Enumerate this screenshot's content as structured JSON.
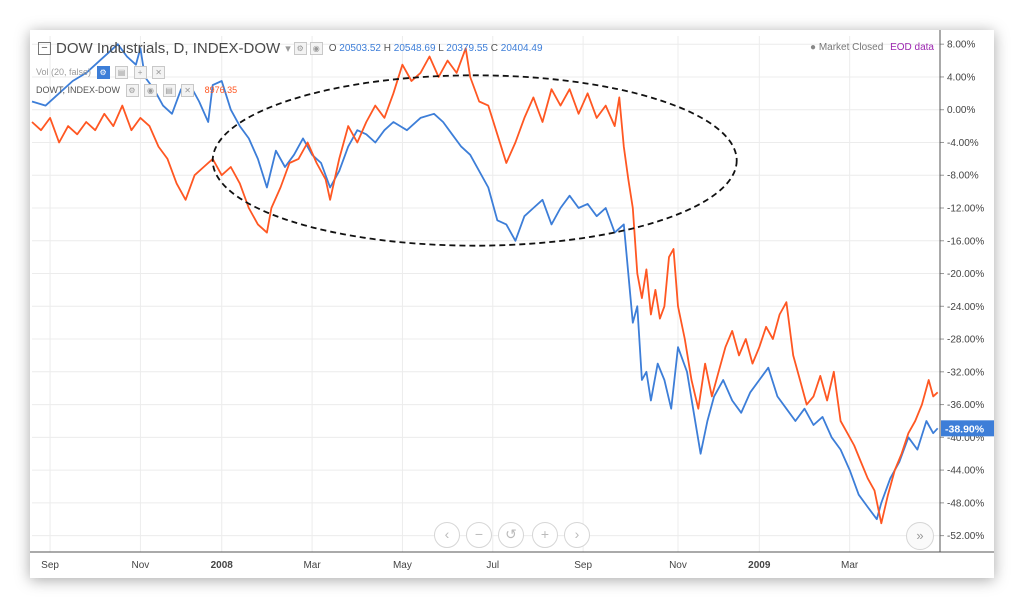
{
  "header": {
    "collapse_icon": "collapse-square-icon",
    "title": "DOW Industrials, D, INDEX-DOW",
    "ohlc": {
      "o_label": "O",
      "o": "20503.52",
      "h_label": "H",
      "h": "20548.69",
      "l_label": "L",
      "l": "20379.55",
      "c_label": "C",
      "c": "20404.49"
    },
    "vol_label": "Vol (20, false)",
    "compare_label": "DOWT, INDEX-DOW",
    "compare_value": "8976.35",
    "market_status": "Market Closed",
    "data_source": "EOD data",
    "last_value_label": "-38.90%"
  },
  "colors": {
    "dow": "#3d7ed8",
    "dowt": "#ff5722",
    "ellipse": "#111111",
    "grid": "#ececec",
    "last_value_bg": "#3d7ed8"
  },
  "nav": {
    "back": "‹",
    "zoom_out": "−",
    "reset": "↺",
    "zoom_in": "+",
    "forward": "›",
    "scroll_right": "»"
  },
  "chart_data": {
    "type": "line",
    "y_unit": "percent",
    "ylim": [
      -54,
      9
    ],
    "y_ticks": [
      "8.00%",
      "4.00%",
      "0.00%",
      "-4.00%",
      "-8.00%",
      "-12.00%",
      "-16.00%",
      "-20.00%",
      "-24.00%",
      "-28.00%",
      "-32.00%",
      "-36.00%",
      "-40.00%",
      "-44.00%",
      "-48.00%",
      "-52.00%"
    ],
    "x_ticks": [
      {
        "label": "Sep",
        "x": 0.4
      },
      {
        "label": "Nov",
        "x": 2.4
      },
      {
        "label": "2008",
        "x": 4.2
      },
      {
        "label": "Mar",
        "x": 6.2
      },
      {
        "label": "May",
        "x": 8.2
      },
      {
        "label": "Jul",
        "x": 10.2
      },
      {
        "label": "Sep",
        "x": 12.2
      },
      {
        "label": "Nov",
        "x": 14.3
      },
      {
        "label": "2009",
        "x": 16.1
      },
      {
        "label": "Mar",
        "x": 18.1
      }
    ],
    "xlim": [
      0,
      20.1
    ],
    "series": [
      {
        "name": "DOW Industrials",
        "color": "#3d7ed8",
        "points": [
          [
            0.0,
            1.0
          ],
          [
            0.3,
            0.5
          ],
          [
            0.6,
            2.0
          ],
          [
            0.9,
            3.5
          ],
          [
            1.2,
            4.5
          ],
          [
            1.5,
            6.0
          ],
          [
            1.7,
            7.0
          ],
          [
            1.9,
            8.0
          ],
          [
            2.1,
            6.5
          ],
          [
            2.3,
            5.5
          ],
          [
            2.4,
            7.5
          ],
          [
            2.5,
            4.0
          ],
          [
            2.7,
            2.5
          ],
          [
            2.9,
            0.5
          ],
          [
            3.1,
            -0.5
          ],
          [
            3.3,
            2.5
          ],
          [
            3.5,
            3.0
          ],
          [
            3.7,
            1.0
          ],
          [
            3.9,
            -1.5
          ],
          [
            4.0,
            3.0
          ],
          [
            4.2,
            3.5
          ],
          [
            4.4,
            0.0
          ],
          [
            4.6,
            -2.0
          ],
          [
            4.8,
            -3.5
          ],
          [
            5.0,
            -6.0
          ],
          [
            5.2,
            -9.5
          ],
          [
            5.4,
            -5.0
          ],
          [
            5.6,
            -7.0
          ],
          [
            5.8,
            -5.5
          ],
          [
            6.0,
            -3.5
          ],
          [
            6.2,
            -5.5
          ],
          [
            6.4,
            -6.5
          ],
          [
            6.6,
            -9.5
          ],
          [
            6.8,
            -7.5
          ],
          [
            7.0,
            -4.5
          ],
          [
            7.2,
            -2.5
          ],
          [
            7.4,
            -3.0
          ],
          [
            7.6,
            -4.0
          ],
          [
            7.8,
            -2.5
          ],
          [
            8.0,
            -1.5
          ],
          [
            8.3,
            -2.5
          ],
          [
            8.6,
            -1.0
          ],
          [
            8.9,
            -0.5
          ],
          [
            9.1,
            -1.5
          ],
          [
            9.3,
            -3.0
          ],
          [
            9.5,
            -4.5
          ],
          [
            9.7,
            -5.5
          ],
          [
            9.9,
            -7.5
          ],
          [
            10.1,
            -9.5
          ],
          [
            10.3,
            -13.5
          ],
          [
            10.5,
            -14.0
          ],
          [
            10.7,
            -16.0
          ],
          [
            10.9,
            -13.0
          ],
          [
            11.1,
            -12.0
          ],
          [
            11.3,
            -11.0
          ],
          [
            11.5,
            -14.0
          ],
          [
            11.7,
            -12.0
          ],
          [
            11.9,
            -10.5
          ],
          [
            12.1,
            -12.0
          ],
          [
            12.3,
            -11.5
          ],
          [
            12.5,
            -13.0
          ],
          [
            12.7,
            -12.0
          ],
          [
            12.9,
            -15.0
          ],
          [
            13.1,
            -14.0
          ],
          [
            13.2,
            -20.0
          ],
          [
            13.3,
            -26.0
          ],
          [
            13.4,
            -24.0
          ],
          [
            13.5,
            -33.0
          ],
          [
            13.6,
            -32.0
          ],
          [
            13.7,
            -35.5
          ],
          [
            13.85,
            -31.0
          ],
          [
            14.0,
            -33.0
          ],
          [
            14.15,
            -36.5
          ],
          [
            14.3,
            -29.0
          ],
          [
            14.5,
            -32.0
          ],
          [
            14.65,
            -37.0
          ],
          [
            14.8,
            -42.0
          ],
          [
            14.95,
            -38.0
          ],
          [
            15.1,
            -35.0
          ],
          [
            15.3,
            -33.0
          ],
          [
            15.5,
            -35.5
          ],
          [
            15.7,
            -37.0
          ],
          [
            15.9,
            -34.5
          ],
          [
            16.1,
            -33.0
          ],
          [
            16.3,
            -31.5
          ],
          [
            16.5,
            -35.0
          ],
          [
            16.7,
            -36.5
          ],
          [
            16.9,
            -38.0
          ],
          [
            17.1,
            -36.5
          ],
          [
            17.3,
            -38.5
          ],
          [
            17.5,
            -37.5
          ],
          [
            17.7,
            -40.0
          ],
          [
            17.9,
            -41.5
          ],
          [
            18.1,
            -44.0
          ],
          [
            18.3,
            -47.0
          ],
          [
            18.5,
            -48.5
          ],
          [
            18.7,
            -50.0
          ],
          [
            18.8,
            -48.0
          ],
          [
            19.0,
            -45.0
          ],
          [
            19.2,
            -43.0
          ],
          [
            19.4,
            -40.0
          ],
          [
            19.6,
            -41.5
          ],
          [
            19.8,
            -38.0
          ],
          [
            19.95,
            -39.5
          ],
          [
            20.05,
            -38.9
          ]
        ]
      },
      {
        "name": "DOWT",
        "color": "#ff5722",
        "points": [
          [
            0.0,
            -1.5
          ],
          [
            0.2,
            -2.5
          ],
          [
            0.4,
            -1.0
          ],
          [
            0.6,
            -4.0
          ],
          [
            0.8,
            -2.0
          ],
          [
            1.0,
            -3.0
          ],
          [
            1.2,
            -1.5
          ],
          [
            1.4,
            -2.5
          ],
          [
            1.6,
            -0.5
          ],
          [
            1.8,
            -2.0
          ],
          [
            2.0,
            0.5
          ],
          [
            2.2,
            -2.5
          ],
          [
            2.4,
            -1.0
          ],
          [
            2.6,
            -2.0
          ],
          [
            2.8,
            -4.5
          ],
          [
            3.0,
            -6.0
          ],
          [
            3.2,
            -9.0
          ],
          [
            3.4,
            -11.0
          ],
          [
            3.6,
            -8.0
          ],
          [
            3.8,
            -7.0
          ],
          [
            4.0,
            -6.0
          ],
          [
            4.2,
            -8.0
          ],
          [
            4.4,
            -7.0
          ],
          [
            4.6,
            -9.0
          ],
          [
            4.8,
            -12.0
          ],
          [
            5.0,
            -14.0
          ],
          [
            5.2,
            -15.0
          ],
          [
            5.3,
            -12.0
          ],
          [
            5.5,
            -9.5
          ],
          [
            5.7,
            -6.5
          ],
          [
            5.9,
            -6.0
          ],
          [
            6.1,
            -4.0
          ],
          [
            6.3,
            -6.5
          ],
          [
            6.5,
            -8.5
          ],
          [
            6.6,
            -11.0
          ],
          [
            6.8,
            -6.0
          ],
          [
            7.0,
            -2.0
          ],
          [
            7.2,
            -4.0
          ],
          [
            7.4,
            -1.5
          ],
          [
            7.6,
            0.5
          ],
          [
            7.8,
            -1.0
          ],
          [
            8.0,
            2.0
          ],
          [
            8.2,
            5.5
          ],
          [
            8.4,
            3.5
          ],
          [
            8.6,
            4.5
          ],
          [
            8.8,
            6.5
          ],
          [
            9.0,
            4.0
          ],
          [
            9.2,
            6.0
          ],
          [
            9.4,
            4.5
          ],
          [
            9.6,
            7.5
          ],
          [
            9.7,
            4.0
          ],
          [
            9.9,
            1.0
          ],
          [
            10.1,
            0.5
          ],
          [
            10.3,
            -3.0
          ],
          [
            10.5,
            -6.5
          ],
          [
            10.7,
            -4.0
          ],
          [
            10.9,
            -1.0
          ],
          [
            11.1,
            1.5
          ],
          [
            11.3,
            -1.5
          ],
          [
            11.5,
            2.5
          ],
          [
            11.7,
            0.5
          ],
          [
            11.9,
            2.5
          ],
          [
            12.1,
            -0.5
          ],
          [
            12.3,
            2.0
          ],
          [
            12.5,
            -1.0
          ],
          [
            12.7,
            0.5
          ],
          [
            12.9,
            -2.0
          ],
          [
            13.0,
            1.5
          ],
          [
            13.1,
            -4.5
          ],
          [
            13.2,
            -8.5
          ],
          [
            13.3,
            -12.0
          ],
          [
            13.4,
            -20.0
          ],
          [
            13.5,
            -23.0
          ],
          [
            13.6,
            -19.5
          ],
          [
            13.7,
            -25.0
          ],
          [
            13.8,
            -22.0
          ],
          [
            13.9,
            -25.5
          ],
          [
            14.0,
            -24.0
          ],
          [
            14.1,
            -18.0
          ],
          [
            14.2,
            -17.0
          ],
          [
            14.3,
            -24.0
          ],
          [
            14.45,
            -28.0
          ],
          [
            14.6,
            -33.0
          ],
          [
            14.75,
            -36.5
          ],
          [
            14.9,
            -31.0
          ],
          [
            15.05,
            -35.0
          ],
          [
            15.2,
            -32.0
          ],
          [
            15.35,
            -29.0
          ],
          [
            15.5,
            -27.0
          ],
          [
            15.65,
            -30.0
          ],
          [
            15.8,
            -28.0
          ],
          [
            15.95,
            -31.0
          ],
          [
            16.1,
            -29.0
          ],
          [
            16.25,
            -26.5
          ],
          [
            16.4,
            -28.0
          ],
          [
            16.55,
            -25.0
          ],
          [
            16.7,
            -23.5
          ],
          [
            16.85,
            -30.0
          ],
          [
            17.0,
            -33.0
          ],
          [
            17.15,
            -36.0
          ],
          [
            17.3,
            -35.0
          ],
          [
            17.45,
            -32.5
          ],
          [
            17.6,
            -35.5
          ],
          [
            17.75,
            -32.0
          ],
          [
            17.9,
            -38.0
          ],
          [
            18.05,
            -39.5
          ],
          [
            18.2,
            -41.0
          ],
          [
            18.35,
            -43.0
          ],
          [
            18.5,
            -45.0
          ],
          [
            18.65,
            -46.5
          ],
          [
            18.8,
            -50.5
          ],
          [
            18.95,
            -47.0
          ],
          [
            19.1,
            -44.0
          ],
          [
            19.25,
            -42.0
          ],
          [
            19.4,
            -39.5
          ],
          [
            19.55,
            -38.0
          ],
          [
            19.7,
            -36.0
          ],
          [
            19.85,
            -33.0
          ],
          [
            19.95,
            -35.0
          ],
          [
            20.05,
            -34.5
          ]
        ]
      }
    ],
    "annotations": [
      {
        "type": "ellipse",
        "style": "dashed",
        "cx": 9.8,
        "cy": -6.2,
        "rx": 5.8,
        "ry": 10.4
      }
    ]
  }
}
